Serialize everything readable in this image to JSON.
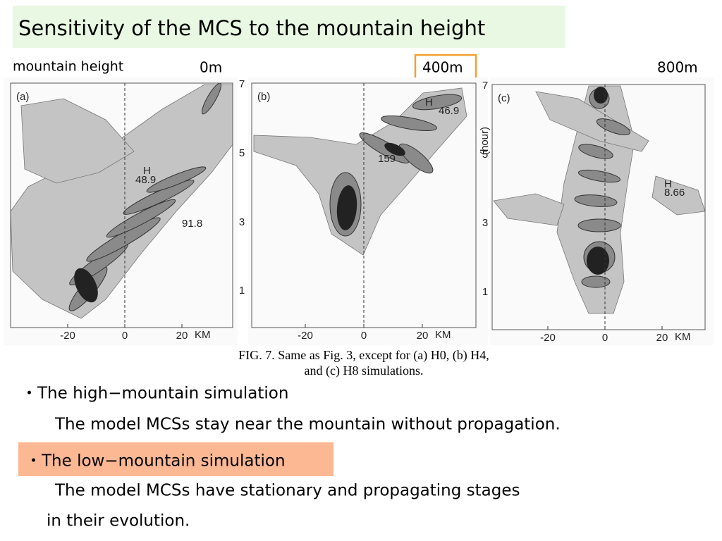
{
  "header": {
    "title": "Sensitivity of the MCS to the mountain height"
  },
  "labels": {
    "row_label": "mountain height",
    "heights": [
      "0m",
      "400m",
      "800m"
    ]
  },
  "panels": [
    {
      "label": "(a)",
      "xticks": [
        "-20",
        "0",
        "20"
      ],
      "x_unit": "KM",
      "yticks": [],
      "annotations": [
        "H",
        "48.9",
        "91.8"
      ]
    },
    {
      "label": "(b)",
      "xticks": [
        "-20",
        "0",
        "20"
      ],
      "x_unit": "KM",
      "yticks": [
        "1",
        "3",
        "5",
        "7"
      ],
      "annotations": [
        "H",
        "46.9",
        "159"
      ]
    },
    {
      "label": "(c)",
      "xticks": [
        "-20",
        "0",
        "20"
      ],
      "x_unit": "KM",
      "yticks": [
        "1",
        "3",
        "5",
        "7"
      ],
      "y_label": "(hour)",
      "annotations": [
        "H",
        "8.66"
      ]
    }
  ],
  "caption": {
    "lines": [
      "FIG. 7. Same as Fig. 3, except for (a) H0, (b) H4,",
      "and (c) H8 simulations."
    ]
  },
  "bullets": [
    {
      "heading": "・The high−mountain simulation",
      "body": [
        "The model MCSs stay near the mountain without propagation."
      ]
    },
    {
      "heading": "・The low−mountain simulation",
      "body": [
        "The model MCSs have stationary and propagating stages",
        "in their evolution."
      ]
    }
  ]
}
